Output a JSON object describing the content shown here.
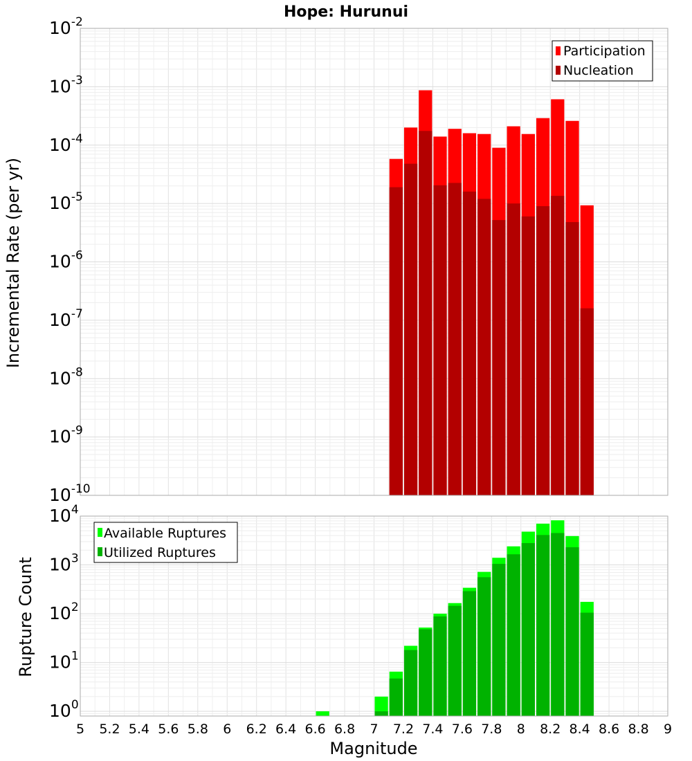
{
  "chart_data": [
    {
      "type": "bar",
      "title": "Hope: Hurunui",
      "xlabel": "",
      "ylabel": "Incremental Rate (per yr)",
      "yscale": "log",
      "ylim": [
        1e-10,
        0.01
      ],
      "xlim": [
        5,
        9
      ],
      "y_tick_exponents": [
        "-10",
        "-9",
        "-8",
        "-7",
        "-6",
        "-5",
        "-4",
        "-3",
        "-2"
      ],
      "y_tick_base": "10",
      "grid": true,
      "legend_position": "top-right",
      "x": [
        7.15,
        7.25,
        7.35,
        7.45,
        7.55,
        7.65,
        7.75,
        7.85,
        7.95,
        8.05,
        8.15,
        8.25,
        8.35,
        8.45
      ],
      "series": [
        {
          "name": "Participation",
          "color": "#ff0000",
          "values": [
            5.8e-05,
            0.0002,
            0.00087,
            0.00014,
            0.00019,
            0.00016,
            0.000155,
            9e-05,
            0.00021,
            0.000155,
            0.00029,
            0.00061,
            0.00026,
            9.3e-06
          ]
        },
        {
          "name": "Nucleation",
          "color": "#b30000",
          "values": [
            1.9e-05,
            4.8e-05,
            0.000175,
            2.05e-05,
            2.25e-05,
            1.6e-05,
            1.2e-05,
            5.2e-06,
            1e-05,
            6e-06,
            9e-06,
            1.35e-05,
            4.8e-06,
            1.6e-07
          ]
        }
      ]
    },
    {
      "type": "bar",
      "title": "",
      "xlabel": "Magnitude",
      "ylabel": "Rupture Count",
      "yscale": "log",
      "ylim": [
        0.8,
        10000
      ],
      "xlim": [
        5,
        9
      ],
      "x_ticks": [
        "5",
        "5.2",
        "5.4",
        "5.6",
        "5.8",
        "6",
        "6.2",
        "6.4",
        "6.6",
        "6.8",
        "7",
        "7.2",
        "7.4",
        "7.6",
        "7.8",
        "8",
        "8.2",
        "8.4",
        "8.6",
        "8.8",
        "9"
      ],
      "y_tick_exponents": [
        "0",
        "1",
        "2",
        "3",
        "4"
      ],
      "y_tick_base": "10",
      "grid": true,
      "legend_position": "top-left",
      "x": [
        6.65,
        7.05,
        7.15,
        7.25,
        7.35,
        7.45,
        7.55,
        7.65,
        7.75,
        7.85,
        7.95,
        8.05,
        8.15,
        8.25,
        8.35,
        8.45
      ],
      "series": [
        {
          "name": "Available Ruptures",
          "color": "#00ff00",
          "values": [
            1,
            2,
            6.5,
            22,
            52,
            100,
            165,
            340,
            720,
            1400,
            2400,
            4800,
            7000,
            8200,
            3900,
            175
          ]
        },
        {
          "name": "Utilized Ruptures",
          "color": "#00b200",
          "values": [
            0,
            1,
            4.7,
            18,
            48,
            88,
            145,
            290,
            560,
            1050,
            1650,
            2800,
            4100,
            4500,
            2300,
            105
          ]
        }
      ]
    }
  ]
}
